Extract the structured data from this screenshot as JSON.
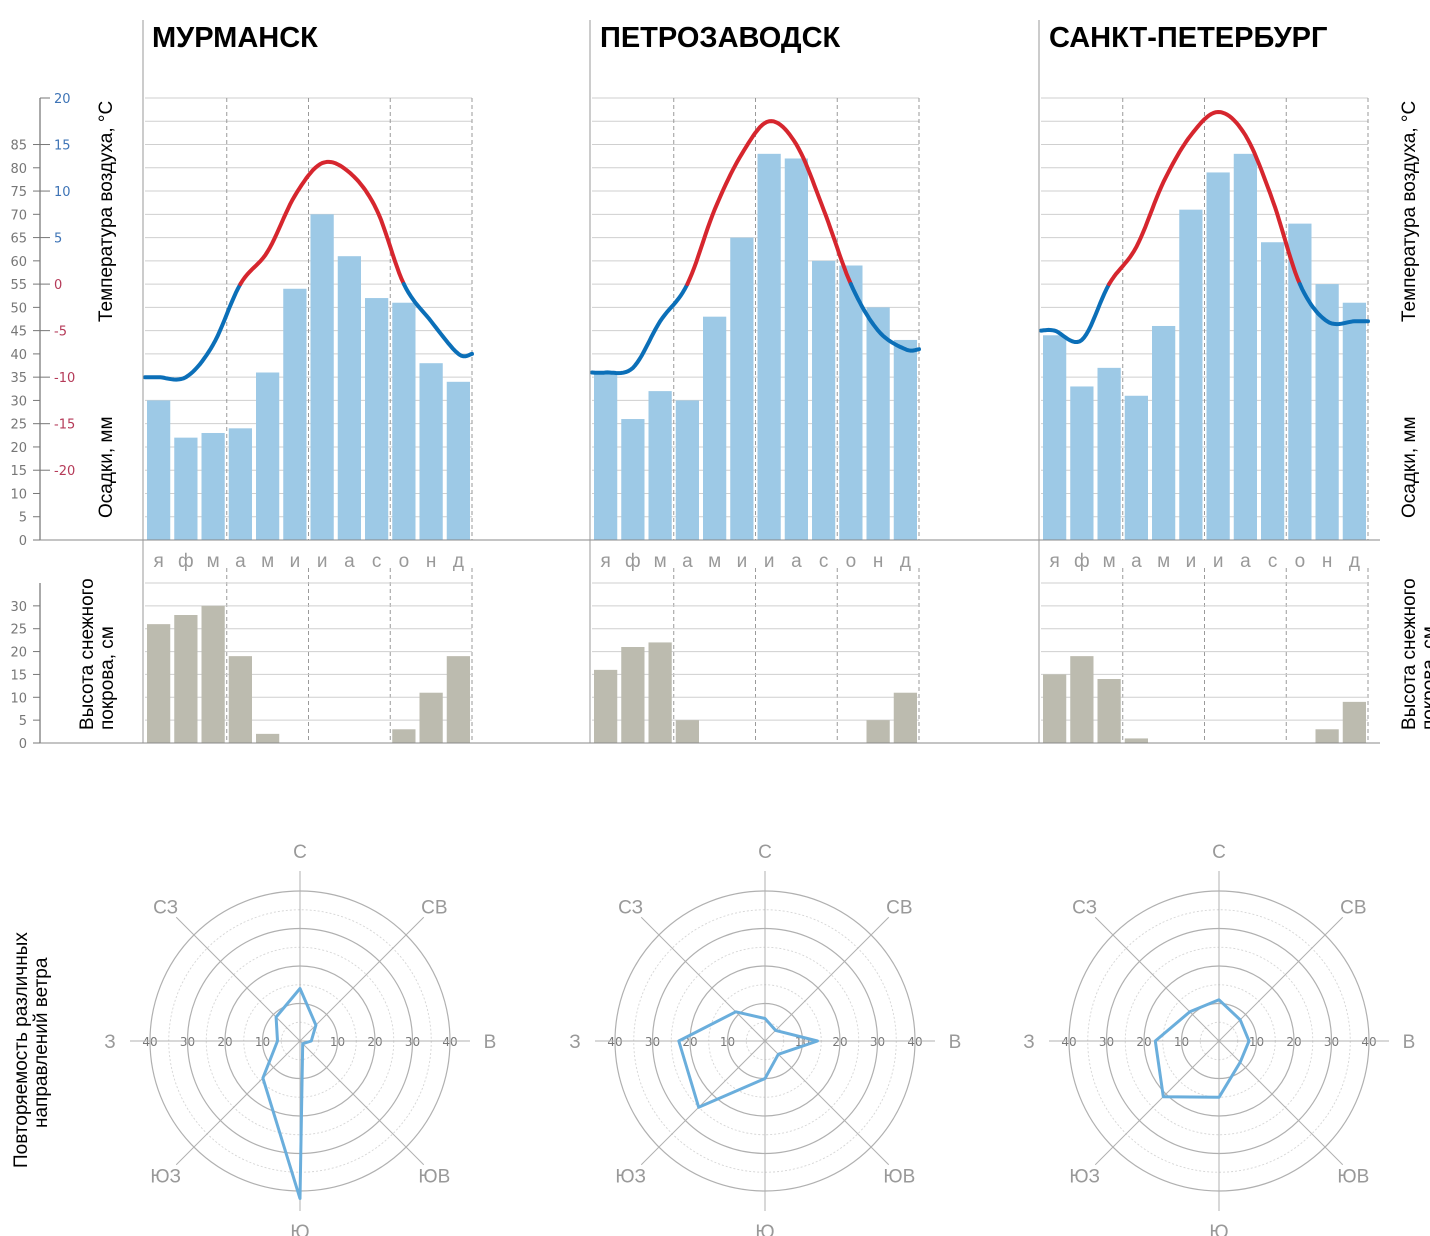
{
  "chart_data": [
    {
      "type": "climate-chart",
      "city": "МУРМАНСК",
      "months": [
        "я",
        "ф",
        "м",
        "а",
        "м",
        "и",
        "и",
        "а",
        "с",
        "о",
        "н",
        "д"
      ],
      "precipitation_mm": [
        30,
        22,
        23,
        24,
        36,
        54,
        70,
        61,
        52,
        51,
        38,
        34
      ],
      "temperature_c": [
        -10,
        -10,
        -6.5,
        0,
        3.5,
        9.5,
        13,
        12,
        8,
        0,
        -4,
        -7.5
      ],
      "snow_cover_cm": [
        26,
        28,
        30,
        19,
        2,
        0,
        0,
        0,
        0,
        3,
        11,
        19
      ],
      "wind_rose": {
        "С": 14,
        "СВ": 6,
        "В": 3,
        "ЮВ": 1,
        "Ю": 42,
        "ЮЗ": 14,
        "З": 6,
        "СЗ": 9
      }
    },
    {
      "type": "climate-chart",
      "city": "ПЕТРОЗАВОДСК",
      "months": [
        "я",
        "ф",
        "м",
        "а",
        "м",
        "и",
        "и",
        "а",
        "с",
        "о",
        "н",
        "д"
      ],
      "precipitation_mm": [
        36,
        26,
        32,
        30,
        48,
        65,
        83,
        82,
        60,
        59,
        50,
        43
      ],
      "temperature_c": [
        -9.5,
        -9,
        -4,
        0,
        8,
        14,
        17.5,
        15,
        8,
        0,
        -5,
        -7
      ],
      "snow_cover_cm": [
        16,
        21,
        22,
        5,
        0,
        0,
        0,
        0,
        0,
        0,
        5,
        11
      ],
      "wind_rose": {
        "С": 6,
        "СВ": 4,
        "В": 14,
        "ЮВ": 5,
        "Ю": 10,
        "ЮЗ": 25,
        "З": 23,
        "СЗ": 11
      }
    },
    {
      "type": "climate-chart",
      "city": "САНКТ-ПЕТЕРБУРГ",
      "months": [
        "я",
        "ф",
        "м",
        "а",
        "м",
        "и",
        "и",
        "а",
        "с",
        "о",
        "н",
        "д"
      ],
      "precipitation_mm": [
        44,
        33,
        37,
        31,
        46,
        71,
        79,
        83,
        64,
        68,
        55,
        51
      ],
      "temperature_c": [
        -5,
        -6,
        0,
        4,
        11,
        16,
        18.5,
        16,
        9,
        0,
        -4,
        -4
      ],
      "snow_cover_cm": [
        15,
        19,
        14,
        1,
        0,
        0,
        0,
        0,
        0,
        0,
        3,
        9
      ],
      "wind_rose": {
        "С": 11,
        "СВ": 8,
        "В": 8,
        "ЮВ": 8,
        "Ю": 15,
        "ЮЗ": 21,
        "З": 17,
        "СЗ": 11
      }
    }
  ],
  "axes": {
    "temperature_label": "Температура воздуха, °С",
    "precipitation_label": "Осадки, мм",
    "snow_label_line1": "Высота снежного",
    "snow_label_line2": "покрова, см",
    "wind_label_line1": "Повторяемость различных",
    "wind_label_line2": "направлений ветра",
    "precip_ticks": [
      0,
      5,
      10,
      15,
      20,
      25,
      30,
      35,
      40,
      45,
      50,
      55,
      60,
      65,
      70,
      75,
      80,
      85
    ],
    "temp_ticks": [
      20,
      15,
      10,
      5,
      0,
      -5,
      -10,
      -15,
      -20
    ],
    "snow_ticks": [
      0,
      5,
      10,
      15,
      20,
      25,
      30
    ],
    "wind_ticks": [
      10,
      20,
      30,
      40
    ],
    "wind_directions": [
      "С",
      "СВ",
      "В",
      "ЮВ",
      "Ю",
      "ЮЗ",
      "З",
      "СЗ"
    ],
    "precip_range": [
      0,
      95
    ],
    "temp_range": [
      -27.5,
      20
    ],
    "snow_range": [
      0,
      35
    ],
    "wind_range": [
      0,
      40
    ]
  },
  "colors": {
    "precip_bar": "#9dc9e6",
    "snow_bar": "#bcbbaf",
    "temp_warm": "#d6262e",
    "temp_cold": "#0b6fb8",
    "wind_line": "#6aaedc",
    "grid": "#cfcfcf",
    "temp_tick_warm": "#b53a58",
    "temp_tick_cold": "#3e74b6"
  }
}
